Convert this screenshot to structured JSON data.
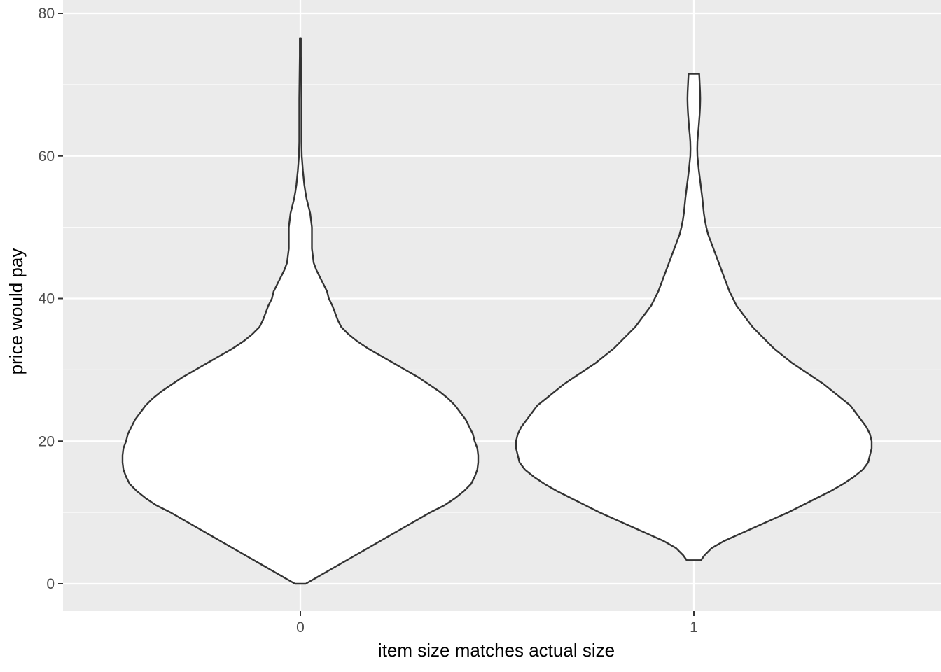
{
  "chart_data": {
    "type": "violin",
    "title": "",
    "xlabel": "item size matches actual size",
    "ylabel": "price would pay",
    "categories": [
      "0",
      "1"
    ],
    "y_ticks": [
      0,
      20,
      40,
      60,
      80
    ],
    "ylim": [
      -3.8,
      80.1
    ],
    "grid": true,
    "colors": {
      "panel": "#ebebeb",
      "grid": "#ffffff",
      "violin_fill": "#ffffff",
      "violin_stroke": "#333333"
    },
    "series": [
      {
        "category": "0",
        "range": [
          0,
          76.5
        ],
        "density": [
          [
            0,
            0.03
          ],
          [
            1,
            0.1
          ],
          [
            2,
            0.17
          ],
          [
            3,
            0.24
          ],
          [
            4,
            0.31
          ],
          [
            5,
            0.38
          ],
          [
            6,
            0.45
          ],
          [
            7,
            0.52
          ],
          [
            8,
            0.59
          ],
          [
            9,
            0.66
          ],
          [
            10,
            0.73
          ],
          [
            11,
            0.81
          ],
          [
            12,
            0.87
          ],
          [
            13,
            0.92
          ],
          [
            14,
            0.96
          ],
          [
            15,
            0.98
          ],
          [
            16,
            0.995
          ],
          [
            17,
            1.0
          ],
          [
            18,
            1.0
          ],
          [
            19,
            0.995
          ],
          [
            20,
            0.98
          ],
          [
            21,
            0.97
          ],
          [
            22,
            0.95
          ],
          [
            23,
            0.93
          ],
          [
            24,
            0.9
          ],
          [
            25,
            0.87
          ],
          [
            26,
            0.83
          ],
          [
            27,
            0.78
          ],
          [
            28,
            0.72
          ],
          [
            29,
            0.66
          ],
          [
            30,
            0.59
          ],
          [
            31,
            0.52
          ],
          [
            32,
            0.45
          ],
          [
            33,
            0.38
          ],
          [
            34,
            0.32
          ],
          [
            35,
            0.27
          ],
          [
            36,
            0.23
          ],
          [
            37,
            0.21
          ],
          [
            38,
            0.195
          ],
          [
            39,
            0.18
          ],
          [
            40,
            0.16
          ],
          [
            41,
            0.15
          ],
          [
            42,
            0.13
          ],
          [
            43,
            0.11
          ],
          [
            44,
            0.09
          ],
          [
            45,
            0.075
          ],
          [
            46,
            0.07
          ],
          [
            47,
            0.065
          ],
          [
            48,
            0.065
          ],
          [
            49,
            0.065
          ],
          [
            50,
            0.065
          ],
          [
            51,
            0.06
          ],
          [
            52,
            0.055
          ],
          [
            53,
            0.045
          ],
          [
            54,
            0.035
          ],
          [
            55,
            0.028
          ],
          [
            56,
            0.022
          ],
          [
            57,
            0.018
          ],
          [
            58,
            0.014
          ],
          [
            59,
            0.011
          ],
          [
            60,
            0.008
          ],
          [
            61,
            0.007
          ],
          [
            62,
            0.006
          ],
          [
            64,
            0.006
          ],
          [
            66,
            0.006
          ],
          [
            68,
            0.006
          ],
          [
            70,
            0.005
          ],
          [
            72,
            0.004
          ],
          [
            74,
            0.003
          ],
          [
            76.5,
            0.003
          ]
        ]
      },
      {
        "category": "1",
        "range": [
          3.3,
          71.5
        ],
        "density": [
          [
            3.3,
            0.04
          ],
          [
            4,
            0.06
          ],
          [
            5,
            0.1
          ],
          [
            6,
            0.17
          ],
          [
            7,
            0.26
          ],
          [
            8,
            0.35
          ],
          [
            9,
            0.44
          ],
          [
            10,
            0.53
          ],
          [
            11,
            0.61
          ],
          [
            12,
            0.69
          ],
          [
            13,
            0.77
          ],
          [
            14,
            0.84
          ],
          [
            15,
            0.9
          ],
          [
            16,
            0.95
          ],
          [
            17,
            0.98
          ],
          [
            18,
            0.99
          ],
          [
            19,
            1.0
          ],
          [
            20,
            1.0
          ],
          [
            21,
            0.99
          ],
          [
            22,
            0.97
          ],
          [
            23,
            0.94
          ],
          [
            24,
            0.91
          ],
          [
            25,
            0.88
          ],
          [
            26,
            0.83
          ],
          [
            27,
            0.78
          ],
          [
            28,
            0.73
          ],
          [
            29,
            0.67
          ],
          [
            30,
            0.61
          ],
          [
            31,
            0.55
          ],
          [
            32,
            0.5
          ],
          [
            33,
            0.45
          ],
          [
            34,
            0.41
          ],
          [
            35,
            0.37
          ],
          [
            36,
            0.33
          ],
          [
            37,
            0.3
          ],
          [
            38,
            0.27
          ],
          [
            39,
            0.24
          ],
          [
            40,
            0.22
          ],
          [
            41,
            0.2
          ],
          [
            42,
            0.185
          ],
          [
            43,
            0.17
          ],
          [
            44,
            0.155
          ],
          [
            45,
            0.14
          ],
          [
            46,
            0.125
          ],
          [
            47,
            0.11
          ],
          [
            48,
            0.095
          ],
          [
            49,
            0.08
          ],
          [
            50,
            0.07
          ],
          [
            51,
            0.062
          ],
          [
            52,
            0.056
          ],
          [
            53,
            0.052
          ],
          [
            54,
            0.048
          ],
          [
            55,
            0.043
          ],
          [
            56,
            0.038
          ],
          [
            57,
            0.033
          ],
          [
            58,
            0.028
          ],
          [
            59,
            0.024
          ],
          [
            60,
            0.02
          ],
          [
            61,
            0.019
          ],
          [
            62,
            0.02
          ],
          [
            63,
            0.023
          ],
          [
            64,
            0.027
          ],
          [
            65,
            0.03
          ],
          [
            66,
            0.033
          ],
          [
            67,
            0.035
          ],
          [
            68,
            0.036
          ],
          [
            69,
            0.035
          ],
          [
            70,
            0.033
          ],
          [
            71.5,
            0.03
          ]
        ]
      }
    ]
  }
}
